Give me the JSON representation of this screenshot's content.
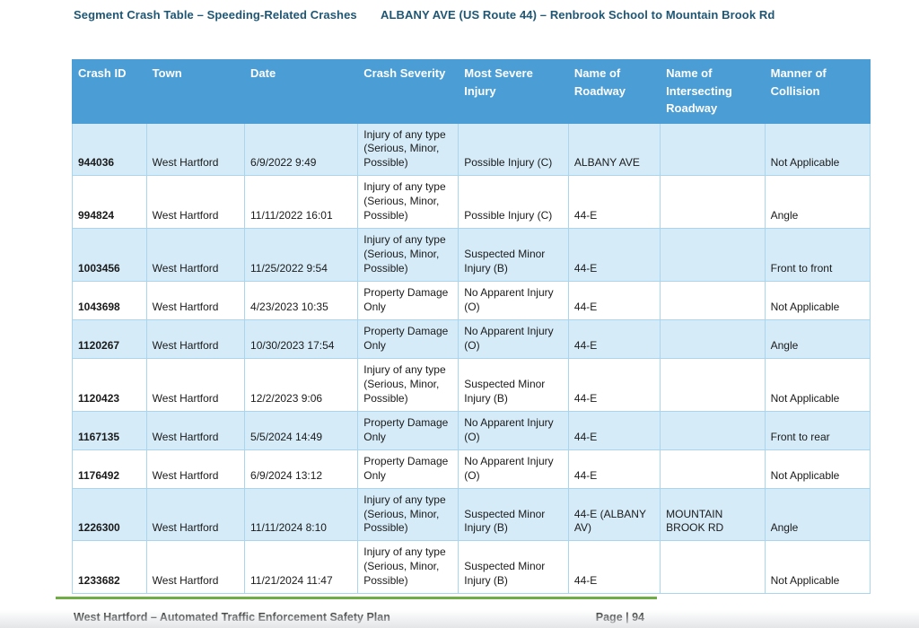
{
  "header": {
    "left_title": "Segment Crash Table – Speeding-Related Crashes",
    "right_title": "ALBANY AVE (US Route 44) – Renbrook School to Mountain Brook Rd"
  },
  "colors": {
    "table_header_bg": "#4a9dd5",
    "row_alt_bg": "#d5ebf8",
    "cell_border": "#aad5ef",
    "title_text": "#1f5673",
    "footer_rule": "#70ad47"
  },
  "table": {
    "columns": [
      {
        "key": "crash_id",
        "label": "Crash ID"
      },
      {
        "key": "town",
        "label": "Town"
      },
      {
        "key": "date",
        "label": "Date"
      },
      {
        "key": "crash_severity",
        "label": "Crash Severity"
      },
      {
        "key": "most_severe_injury",
        "label": "Most Severe Injury"
      },
      {
        "key": "name_of_roadway",
        "label": "Name of Roadway"
      },
      {
        "key": "name_of_intersecting_roadway",
        "label": "Name of Intersecting Roadway"
      },
      {
        "key": "manner_of_collision",
        "label": "Manner of Collision"
      }
    ],
    "rows": [
      {
        "crash_id": "944036",
        "town": "West Hartford",
        "date": "6/9/2022 9:49",
        "crash_severity": "Injury of any type (Serious, Minor, Possible)",
        "most_severe_injury": "Possible Injury (C)",
        "name_of_roadway": "ALBANY AVE",
        "name_of_intersecting_roadway": "",
        "manner_of_collision": "Not Applicable"
      },
      {
        "crash_id": "994824",
        "town": "West Hartford",
        "date": "11/11/2022 16:01",
        "crash_severity": "Injury of any type (Serious, Minor, Possible)",
        "most_severe_injury": "Possible Injury (C)",
        "name_of_roadway": "44-E",
        "name_of_intersecting_roadway": "",
        "manner_of_collision": "Angle"
      },
      {
        "crash_id": "1003456",
        "town": "West Hartford",
        "date": "11/25/2022 9:54",
        "crash_severity": "Injury of any type (Serious, Minor, Possible)",
        "most_severe_injury": "Suspected Minor Injury (B)",
        "name_of_roadway": "44-E",
        "name_of_intersecting_roadway": "",
        "manner_of_collision": "Front to front"
      },
      {
        "crash_id": "1043698",
        "town": "West Hartford",
        "date": "4/23/2023 10:35",
        "crash_severity": "Property Damage Only",
        "most_severe_injury": "No Apparent Injury (O)",
        "name_of_roadway": "44-E",
        "name_of_intersecting_roadway": "",
        "manner_of_collision": "Not Applicable"
      },
      {
        "crash_id": "1120267",
        "town": "West Hartford",
        "date": "10/30/2023 17:54",
        "crash_severity": "Property Damage Only",
        "most_severe_injury": "No Apparent Injury (O)",
        "name_of_roadway": "44-E",
        "name_of_intersecting_roadway": "",
        "manner_of_collision": "Angle"
      },
      {
        "crash_id": "1120423",
        "town": "West Hartford",
        "date": "12/2/2023 9:06",
        "crash_severity": "Injury of any type (Serious, Minor, Possible)",
        "most_severe_injury": "Suspected Minor Injury (B)",
        "name_of_roadway": "44-E",
        "name_of_intersecting_roadway": "",
        "manner_of_collision": "Not Applicable"
      },
      {
        "crash_id": "1167135",
        "town": "West Hartford",
        "date": "5/5/2024 14:49",
        "crash_severity": "Property Damage Only",
        "most_severe_injury": "No Apparent Injury (O)",
        "name_of_roadway": "44-E",
        "name_of_intersecting_roadway": "",
        "manner_of_collision": "Front to rear"
      },
      {
        "crash_id": "1176492",
        "town": "West Hartford",
        "date": "6/9/2024 13:12",
        "crash_severity": "Property Damage Only",
        "most_severe_injury": "No Apparent Injury (O)",
        "name_of_roadway": "44-E",
        "name_of_intersecting_roadway": "",
        "manner_of_collision": "Not Applicable"
      },
      {
        "crash_id": "1226300",
        "town": "West Hartford",
        "date": "11/11/2024 8:10",
        "crash_severity": "Injury of any type (Serious, Minor, Possible)",
        "most_severe_injury": "Suspected Minor Injury (B)",
        "name_of_roadway": "44-E (ALBANY AV)",
        "name_of_intersecting_roadway": "MOUNTAIN BROOK RD",
        "manner_of_collision": "Angle"
      },
      {
        "crash_id": "1233682",
        "town": "West Hartford",
        "date": "11/21/2024 11:47",
        "crash_severity": "Injury of any type (Serious, Minor, Possible)",
        "most_severe_injury": "Suspected Minor Injury (B)",
        "name_of_roadway": "44-E",
        "name_of_intersecting_roadway": "",
        "manner_of_collision": "Not Applicable"
      }
    ]
  },
  "footer": {
    "left_text": "West Hartford – Automated Traffic Enforcement Safety Plan",
    "right_text": "Page | 94"
  }
}
